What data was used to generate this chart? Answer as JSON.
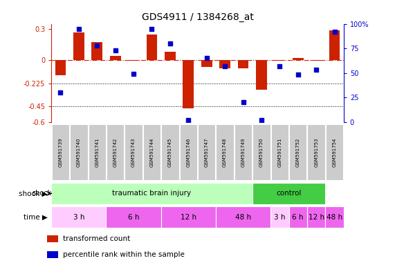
{
  "title": "GDS4911 / 1384268_at",
  "samples": [
    "GSM591739",
    "GSM591740",
    "GSM591741",
    "GSM591742",
    "GSM591743",
    "GSM591744",
    "GSM591745",
    "GSM591746",
    "GSM591747",
    "GSM591748",
    "GSM591749",
    "GSM591750",
    "GSM591751",
    "GSM591752",
    "GSM591753",
    "GSM591754"
  ],
  "red_values": [
    -0.15,
    0.27,
    0.17,
    0.04,
    -0.01,
    0.25,
    0.08,
    -0.47,
    -0.07,
    -0.08,
    -0.08,
    -0.29,
    -0.01,
    0.02,
    -0.01,
    0.29
  ],
  "blue_values_pct": [
    30,
    95,
    78,
    73,
    49,
    95,
    80,
    2,
    65,
    57,
    20,
    2,
    57,
    48,
    53,
    92
  ],
  "ylim_left": [
    -0.6,
    0.35
  ],
  "ylim_right": [
    0,
    100
  ],
  "yticks_left": [
    0.3,
    0.0,
    -0.225,
    -0.45,
    -0.6
  ],
  "yticks_right": [
    100,
    75,
    50,
    25,
    0
  ],
  "dotted_lines": [
    -0.225,
    -0.45
  ],
  "shock_groups": [
    {
      "label": "traumatic brain injury",
      "start": 0,
      "end": 11,
      "color": "#bbffbb"
    },
    {
      "label": "control",
      "start": 11,
      "end": 15,
      "color": "#44cc44"
    }
  ],
  "time_groups": [
    {
      "label": "3 h",
      "start": 0,
      "end": 3,
      "color": "#ffccff"
    },
    {
      "label": "6 h",
      "start": 3,
      "end": 6,
      "color": "#ee66ee"
    },
    {
      "label": "12 h",
      "start": 6,
      "end": 9,
      "color": "#ee66ee"
    },
    {
      "label": "48 h",
      "start": 9,
      "end": 12,
      "color": "#ee66ee"
    },
    {
      "label": "3 h",
      "start": 12,
      "end": 13,
      "color": "#ffccff"
    },
    {
      "label": "6 h",
      "start": 13,
      "end": 14,
      "color": "#ee66ee"
    },
    {
      "label": "12 h",
      "start": 14,
      "end": 15,
      "color": "#ee66ee"
    },
    {
      "label": "48 h",
      "start": 15,
      "end": 16,
      "color": "#ee66ee"
    }
  ],
  "bar_color": "#cc2200",
  "dot_color": "#0000cc",
  "bg_color": "#ffffff",
  "label_shock": "shock",
  "label_time": "time",
  "legend_red": "transformed count",
  "legend_blue": "percentile rank within the sample",
  "sample_box_color": "#cccccc",
  "n_samples": 16
}
